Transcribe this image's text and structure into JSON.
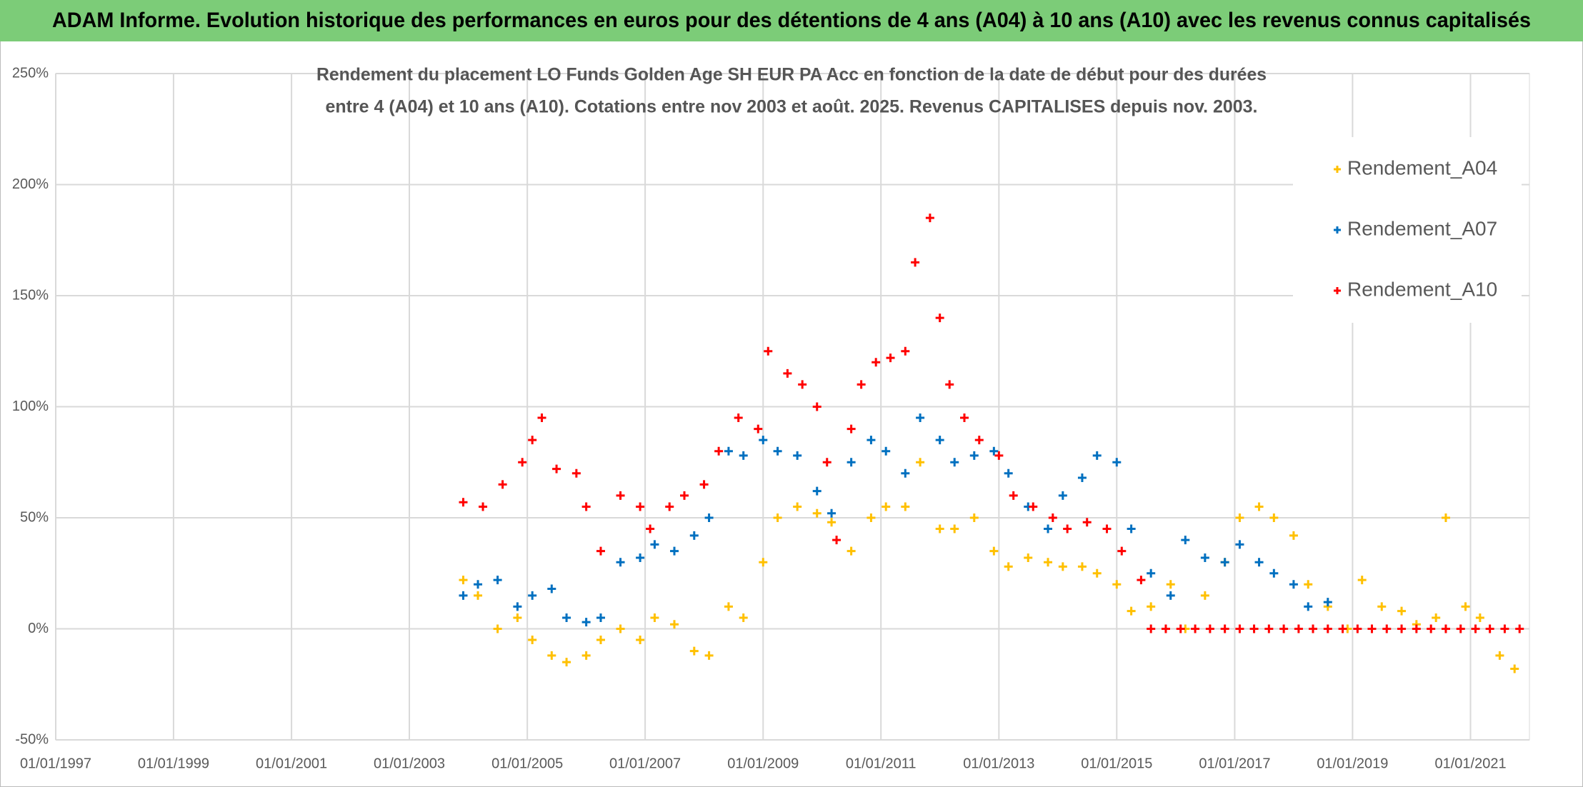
{
  "chart_data": {
    "type": "scatter",
    "title": "ADAM Informe. Evolution historique des performances en euros pour des détentions de 4 ans (A04) à 10 ans (A10) avec les revenus connus capitalisés",
    "subtitle": [
      "Rendement du placement LO Funds Golden Age SH EUR PA Acc en fonction de la date de début pour des durées",
      "entre 4 (A04) et 10 ans (A10). Cotations entre nov 2003 et août. 2025. Revenus CAPITALISES depuis nov. 2003."
    ],
    "xlim": [
      "01/01/1997",
      "01/01/2022"
    ],
    "xticks": [
      "01/01/1997",
      "01/01/1999",
      "01/01/2001",
      "01/01/2003",
      "01/01/2005",
      "01/01/2007",
      "01/01/2009",
      "01/01/2011",
      "01/01/2013",
      "01/01/2015",
      "01/01/2017",
      "01/01/2019",
      "01/01/2021"
    ],
    "ylim": [
      -50,
      250
    ],
    "yticks": [
      {
        "value": -50,
        "label": "-50%"
      },
      {
        "value": 0,
        "label": "0%"
      },
      {
        "value": 50,
        "label": "50%"
      },
      {
        "value": 100,
        "label": "100%"
      },
      {
        "value": 150,
        "label": "150%"
      },
      {
        "value": 200,
        "label": "200%"
      },
      {
        "value": 250,
        "label": "250%"
      }
    ],
    "grid": true,
    "legend": "upper right",
    "series": [
      {
        "name": "Rendement_A04",
        "color": "#ffc000",
        "x": [
          "01/12/2003",
          "01/03/2004",
          "01/07/2004",
          "01/11/2004",
          "01/02/2005",
          "01/06/2005",
          "01/09/2005",
          "01/01/2006",
          "01/04/2006",
          "01/08/2006",
          "01/12/2006",
          "01/03/2007",
          "01/07/2007",
          "01/11/2007",
          "01/02/2008",
          "01/06/2008",
          "01/09/2008",
          "01/01/2009",
          "01/04/2009",
          "01/08/2009",
          "01/12/2009",
          "01/03/2010",
          "01/07/2010",
          "01/11/2010",
          "01/02/2011",
          "01/06/2011",
          "01/09/2011",
          "01/01/2012",
          "01/04/2012",
          "01/08/2012",
          "01/12/2012",
          "01/03/2013",
          "01/07/2013",
          "01/11/2013",
          "01/02/2014",
          "01/06/2014",
          "01/09/2014",
          "01/01/2015",
          "01/04/2015",
          "01/08/2015",
          "01/12/2015",
          "01/03/2016",
          "01/07/2016",
          "01/11/2016",
          "01/02/2017",
          "01/06/2017",
          "01/09/2017",
          "01/01/2018",
          "01/04/2018",
          "01/08/2018",
          "01/12/2018",
          "01/03/2019",
          "01/07/2019",
          "01/11/2019",
          "01/02/2020",
          "01/06/2020",
          "01/08/2020",
          "01/12/2020",
          "01/03/2021",
          "01/07/2021",
          "01/10/2021"
        ],
        "values": [
          22,
          15,
          0,
          5,
          -5,
          -12,
          -15,
          -12,
          -5,
          0,
          -5,
          5,
          2,
          -10,
          -12,
          10,
          5,
          30,
          50,
          55,
          52,
          48,
          35,
          50,
          55,
          55,
          75,
          45,
          45,
          50,
          35,
          28,
          32,
          30,
          28,
          28,
          25,
          20,
          8,
          10,
          20,
          0,
          15,
          30,
          50,
          55,
          50,
          42,
          20,
          10,
          0,
          22,
          10,
          8,
          2,
          5,
          50,
          10,
          5,
          -12,
          -18
        ]
      },
      {
        "name": "Rendement_A07",
        "color": "#0070c0",
        "x": [
          "01/12/2003",
          "01/03/2004",
          "01/07/2004",
          "01/11/2004",
          "01/02/2005",
          "01/06/2005",
          "01/09/2005",
          "01/01/2006",
          "01/04/2006",
          "01/08/2006",
          "01/12/2006",
          "01/03/2007",
          "01/07/2007",
          "01/11/2007",
          "01/02/2008",
          "01/06/2008",
          "01/09/2008",
          "01/01/2009",
          "01/04/2009",
          "01/08/2009",
          "01/12/2009",
          "01/03/2010",
          "01/07/2010",
          "01/11/2010",
          "01/02/2011",
          "01/06/2011",
          "01/09/2011",
          "01/01/2012",
          "01/04/2012",
          "01/08/2012",
          "01/12/2012",
          "01/03/2013",
          "01/07/2013",
          "01/11/2013",
          "01/02/2014",
          "01/06/2014",
          "01/09/2014",
          "01/01/2015",
          "01/04/2015",
          "01/08/2015",
          "01/12/2015",
          "01/03/2016",
          "01/07/2016",
          "01/11/2016",
          "01/02/2017",
          "01/06/2017",
          "01/09/2017",
          "01/01/2018",
          "01/04/2018",
          "01/08/2018"
        ],
        "values": [
          15,
          20,
          22,
          10,
          15,
          18,
          5,
          3,
          5,
          30,
          32,
          38,
          35,
          42,
          50,
          80,
          78,
          85,
          80,
          78,
          62,
          52,
          75,
          85,
          80,
          70,
          95,
          85,
          75,
          78,
          80,
          70,
          55,
          45,
          60,
          68,
          78,
          75,
          45,
          25,
          15,
          40,
          32,
          30,
          38,
          30,
          25,
          20,
          10,
          12
        ]
      },
      {
        "name": "Rendement_A10",
        "color": "#ff0000",
        "x": [
          "01/12/2003",
          "01/04/2004",
          "01/08/2004",
          "01/12/2004",
          "01/02/2005",
          "01/04/2005",
          "01/07/2005",
          "01/11/2005",
          "01/01/2006",
          "01/04/2006",
          "01/08/2006",
          "01/12/2006",
          "01/02/2007",
          "01/06/2007",
          "01/09/2007",
          "01/01/2008",
          "01/04/2008",
          "01/08/2008",
          "01/12/2008",
          "01/02/2009",
          "01/06/2009",
          "01/09/2009",
          "01/12/2009",
          "01/02/2010",
          "01/04/2010",
          "01/07/2010",
          "01/09/2010",
          "01/12/2010",
          "01/03/2011",
          "01/06/2011",
          "01/08/2011",
          "01/11/2011",
          "01/01/2012",
          "01/03/2012",
          "01/06/2012",
          "01/09/2012",
          "01/01/2013",
          "01/04/2013",
          "01/08/2013",
          "01/12/2013",
          "01/03/2014",
          "01/07/2014",
          "01/11/2014",
          "01/02/2015",
          "01/06/2015",
          "01/08/2015",
          "01/11/2015",
          "01/02/2016",
          "01/05/2016",
          "01/08/2016",
          "01/11/2016",
          "01/02/2017",
          "01/05/2017",
          "01/08/2017",
          "01/11/2017",
          "01/02/2018",
          "01/05/2018",
          "01/08/2018",
          "01/11/2018",
          "01/02/2019",
          "01/05/2019",
          "01/08/2019",
          "01/11/2019",
          "01/02/2020",
          "01/05/2020",
          "01/08/2020",
          "01/11/2020",
          "01/02/2021",
          "01/05/2021",
          "01/08/2021",
          "01/11/2021"
        ],
        "values": [
          57,
          55,
          65,
          75,
          85,
          95,
          72,
          70,
          55,
          35,
          60,
          55,
          45,
          55,
          60,
          65,
          80,
          95,
          90,
          125,
          115,
          110,
          100,
          75,
          40,
          90,
          110,
          120,
          122,
          125,
          165,
          185,
          140,
          110,
          95,
          85,
          78,
          60,
          55,
          50,
          45,
          48,
          45,
          35,
          22,
          0,
          0,
          0,
          0,
          0,
          0,
          0,
          0,
          0,
          0,
          0,
          0,
          0,
          0,
          0,
          0,
          0,
          0,
          0,
          0,
          0,
          0,
          0,
          0,
          0,
          0
        ]
      }
    ]
  }
}
